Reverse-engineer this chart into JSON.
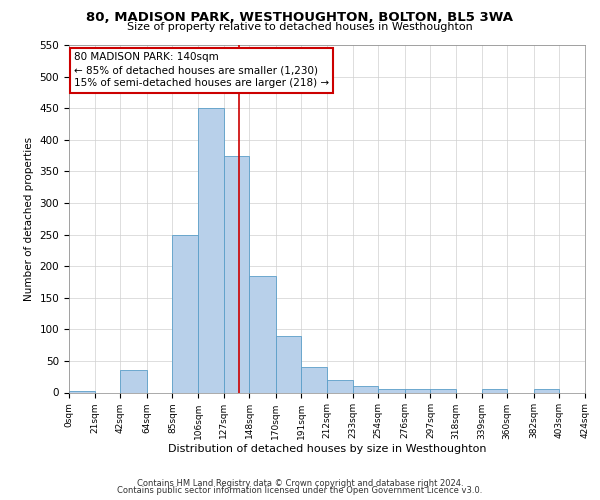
{
  "title": "80, MADISON PARK, WESTHOUGHTON, BOLTON, BL5 3WA",
  "subtitle": "Size of property relative to detached houses in Westhoughton",
  "xlabel": "Distribution of detached houses by size in Westhoughton",
  "ylabel": "Number of detached properties",
  "footer_line1": "Contains HM Land Registry data © Crown copyright and database right 2024.",
  "footer_line2": "Contains public sector information licensed under the Open Government Licence v3.0.",
  "bin_edges": [
    0,
    21,
    42,
    64,
    85,
    106,
    127,
    148,
    170,
    191,
    212,
    233,
    254,
    276,
    297,
    318,
    339,
    360,
    382,
    403,
    424
  ],
  "bar_heights": [
    3,
    0,
    35,
    0,
    250,
    450,
    375,
    185,
    90,
    40,
    20,
    10,
    5,
    5,
    5,
    0,
    5,
    0,
    5,
    0
  ],
  "bar_color": "#b8d0ea",
  "bar_edge_color": "#5a9ec8",
  "property_size": 140,
  "vline_color": "#cc0000",
  "annotation_line1": "80 MADISON PARK: 140sqm",
  "annotation_line2": "← 85% of detached houses are smaller (1,230)",
  "annotation_line3": "15% of semi-detached houses are larger (218) →",
  "ylim_min": 0,
  "ylim_max": 550,
  "yticks": [
    0,
    50,
    100,
    150,
    200,
    250,
    300,
    350,
    400,
    450,
    500,
    550
  ],
  "xtick_labels": [
    "0sqm",
    "21sqm",
    "42sqm",
    "64sqm",
    "85sqm",
    "106sqm",
    "127sqm",
    "148sqm",
    "170sqm",
    "191sqm",
    "212sqm",
    "233sqm",
    "254sqm",
    "276sqm",
    "297sqm",
    "318sqm",
    "339sqm",
    "360sqm",
    "382sqm",
    "403sqm",
    "424sqm"
  ],
  "background_color": "#ffffff",
  "grid_color": "#d0d0d0",
  "title_fontsize": 9.5,
  "subtitle_fontsize": 8,
  "ylabel_fontsize": 7.5,
  "xlabel_fontsize": 8,
  "ytick_fontsize": 7.5,
  "xtick_fontsize": 6.5,
  "footer_fontsize": 6,
  "annotation_fontsize": 7.5
}
